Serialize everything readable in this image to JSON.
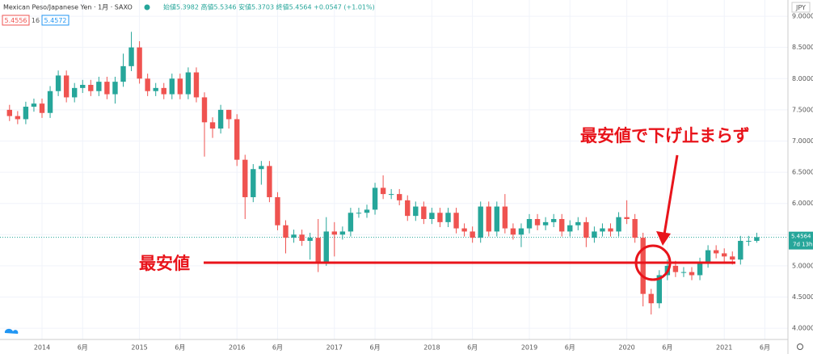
{
  "header": {
    "symbol": "Mexican Peso/Japanese Yen · 1月 · SAXO",
    "ohlc": "始値5.3982 高値5.5346 安値5.3703 終値5.4564 +0.0547 (+1.01%)",
    "box1": "5.4556",
    "box2": "16",
    "box3": "5.4572"
  },
  "chart_data": {
    "type": "candlestick",
    "currency": "JPY",
    "up_color": "#26a69a",
    "down_color": "#ef5350",
    "categories": [
      "2013-09",
      "2013-10",
      "2013-11",
      "2013-12",
      "2014-01",
      "2014-02",
      "2014-03",
      "2014-04",
      "2014-05",
      "2014-06",
      "2014-07",
      "2014-08",
      "2014-09",
      "2014-10",
      "2014-11",
      "2014-12",
      "2015-01",
      "2015-02",
      "2015-03",
      "2015-04",
      "2015-05",
      "2015-06",
      "2015-07",
      "2015-08",
      "2015-09",
      "2015-10",
      "2015-11",
      "2015-12",
      "2016-01",
      "2016-02",
      "2016-03",
      "2016-04",
      "2016-05",
      "2016-06",
      "2016-07",
      "2016-08",
      "2016-09",
      "2016-10",
      "2016-11",
      "2016-12",
      "2017-01",
      "2017-02",
      "2017-03",
      "2017-04",
      "2017-05",
      "2017-06",
      "2017-07",
      "2017-08",
      "2017-09",
      "2017-10",
      "2017-11",
      "2017-12",
      "2018-01",
      "2018-02",
      "2018-03",
      "2018-04",
      "2018-05",
      "2018-06",
      "2018-07",
      "2018-08",
      "2018-09",
      "2018-10",
      "2018-11",
      "2018-12",
      "2019-01",
      "2019-02",
      "2019-03",
      "2019-04",
      "2019-05",
      "2019-06",
      "2019-07",
      "2019-08",
      "2019-09",
      "2019-10",
      "2019-11",
      "2019-12",
      "2020-01",
      "2020-02",
      "2020-03",
      "2020-04",
      "2020-05",
      "2020-06",
      "2020-07",
      "2020-08",
      "2020-09",
      "2020-10",
      "2020-11",
      "2020-12",
      "2021-01",
      "2021-02",
      "2021-03",
      "2021-04",
      "2021-05"
    ],
    "open": [
      7.5,
      7.4,
      7.35,
      7.55,
      7.6,
      7.45,
      7.8,
      8.05,
      7.7,
      7.85,
      7.9,
      7.8,
      7.95,
      7.75,
      7.95,
      8.2,
      8.5,
      8.0,
      7.8,
      7.85,
      7.75,
      8.0,
      7.75,
      8.1,
      7.7,
      7.3,
      7.2,
      7.5,
      7.35,
      6.7,
      6.1,
      6.55,
      6.6,
      6.1,
      5.65,
      5.45,
      5.5,
      5.4,
      5.45,
      5.05,
      5.55,
      5.5,
      5.55,
      5.85,
      5.85,
      5.9,
      6.25,
      6.15,
      6.15,
      6.05,
      5.8,
      5.95,
      5.75,
      5.85,
      5.7,
      5.85,
      5.6,
      5.55,
      5.45,
      5.95,
      5.55,
      5.95,
      5.6,
      5.5,
      5.6,
      5.75,
      5.65,
      5.7,
      5.75,
      5.55,
      5.65,
      5.7,
      5.45,
      5.55,
      5.6,
      5.55,
      5.78,
      5.75,
      5.45,
      4.55,
      4.4,
      4.85,
      5.0,
      4.9,
      4.9,
      4.85,
      5.05,
      5.25,
      5.2,
      5.15,
      5.1,
      5.4,
      5.4
    ],
    "high": [
      7.58,
      7.48,
      7.63,
      7.68,
      7.68,
      7.88,
      8.13,
      8.13,
      7.93,
      7.98,
      7.98,
      8.03,
      8.03,
      8.03,
      8.4,
      8.75,
      8.6,
      8.08,
      7.93,
      7.93,
      8.08,
      8.08,
      8.18,
      8.18,
      7.78,
      7.38,
      7.58,
      7.5,
      7.43,
      6.78,
      6.63,
      6.68,
      6.68,
      6.18,
      5.73,
      5.58,
      5.58,
      5.53,
      5.75,
      5.78,
      5.7,
      5.63,
      5.93,
      5.93,
      5.98,
      6.33,
      6.45,
      6.23,
      6.23,
      6.13,
      6.03,
      6.03,
      5.93,
      5.93,
      5.93,
      5.93,
      5.68,
      5.63,
      6.03,
      6.03,
      6.03,
      6.15,
      5.68,
      5.68,
      5.83,
      5.83,
      5.78,
      5.83,
      5.83,
      5.73,
      5.78,
      5.78,
      5.63,
      5.68,
      5.68,
      5.86,
      6.05,
      5.83,
      5.53,
      4.63,
      4.93,
      5.1,
      5.08,
      4.98,
      4.98,
      5.13,
      5.33,
      5.33,
      5.28,
      5.23,
      5.48,
      5.48,
      5.53
    ],
    "low": [
      7.32,
      7.27,
      7.27,
      7.47,
      7.37,
      7.37,
      7.72,
      7.62,
      7.62,
      7.77,
      7.72,
      7.72,
      7.67,
      7.6,
      7.87,
      8.12,
      7.92,
      7.72,
      7.72,
      7.67,
      7.67,
      7.67,
      7.67,
      7.62,
      6.75,
      7.05,
      7.12,
      7.2,
      6.6,
      5.75,
      6.02,
      6.3,
      6.02,
      5.57,
      5.2,
      5.37,
      5.32,
      5.1,
      4.9,
      5.0,
      5.15,
      5.42,
      5.47,
      5.77,
      5.77,
      5.82,
      6.07,
      6.07,
      5.97,
      5.72,
      5.72,
      5.67,
      5.67,
      5.62,
      5.62,
      5.52,
      5.47,
      5.37,
      5.37,
      5.47,
      5.47,
      5.52,
      5.42,
      5.3,
      5.52,
      5.57,
      5.57,
      5.62,
      5.47,
      5.47,
      5.57,
      5.3,
      5.37,
      5.47,
      5.47,
      5.47,
      5.67,
      5.37,
      4.35,
      4.22,
      4.32,
      4.77,
      4.82,
      4.82,
      4.77,
      4.77,
      4.97,
      5.12,
      5.07,
      5.02,
      5.02,
      5.32,
      5.37
    ],
    "close": [
      7.4,
      7.35,
      7.55,
      7.6,
      7.45,
      7.8,
      8.05,
      7.7,
      7.85,
      7.9,
      7.8,
      7.95,
      7.75,
      7.95,
      8.2,
      8.5,
      8.0,
      7.8,
      7.85,
      7.75,
      8.0,
      7.75,
      8.1,
      7.7,
      7.3,
      7.2,
      7.5,
      7.35,
      6.7,
      6.1,
      6.55,
      6.6,
      6.1,
      5.65,
      5.45,
      5.5,
      5.4,
      5.45,
      5.05,
      5.55,
      5.5,
      5.55,
      5.85,
      5.85,
      5.9,
      6.25,
      6.15,
      6.15,
      6.05,
      5.8,
      5.95,
      5.75,
      5.85,
      5.7,
      5.85,
      5.6,
      5.55,
      5.45,
      5.95,
      5.55,
      5.95,
      5.6,
      5.5,
      5.6,
      5.75,
      5.65,
      5.7,
      5.75,
      5.55,
      5.65,
      5.7,
      5.45,
      5.55,
      5.6,
      5.55,
      5.78,
      5.75,
      5.45,
      4.55,
      4.4,
      4.85,
      5.0,
      4.9,
      4.9,
      4.85,
      5.05,
      5.25,
      5.2,
      5.15,
      5.1,
      5.4,
      5.4,
      5.46
    ],
    "ylim": [
      3.82,
      9.26
    ],
    "yticks": [
      {
        "value": 4,
        "label": "4.0000"
      },
      {
        "value": 4.5,
        "label": "4.5000"
      },
      {
        "value": 5,
        "label": "5.0000"
      },
      {
        "value": 5.5,
        "label": "5.5000"
      },
      {
        "value": 6,
        "label": "6.0000"
      },
      {
        "value": 6.5,
        "label": "6.5000"
      },
      {
        "value": 7,
        "label": "7.0000"
      },
      {
        "value": 7.5,
        "label": "7.5000"
      },
      {
        "value": 8,
        "label": "8.0000"
      },
      {
        "value": 8.5,
        "label": "8.5000"
      },
      {
        "value": 9,
        "label": "9.0000"
      }
    ],
    "xticks": [
      {
        "value": "2014-01",
        "label": "2014"
      },
      {
        "value": "2014-06",
        "label": "6月"
      },
      {
        "value": "2015-01",
        "label": "2015"
      },
      {
        "value": "2015-06",
        "label": "6月"
      },
      {
        "value": "2016-01",
        "label": "2016"
      },
      {
        "value": "2016-06",
        "label": "6月"
      },
      {
        "value": "2017-01",
        "label": "2017"
      },
      {
        "value": "2017-06",
        "label": "6月"
      },
      {
        "value": "2018-01",
        "label": "2018"
      },
      {
        "value": "2018-06",
        "label": "6月"
      },
      {
        "value": "2019-01",
        "label": "2019"
      },
      {
        "value": "2019-06",
        "label": "6月"
      },
      {
        "value": "2020-01",
        "label": "2020"
      },
      {
        "value": "2020-06",
        "label": "6月"
      },
      {
        "value": "2021-01",
        "label": "2021"
      },
      {
        "value": "2021-06",
        "label": "6月"
      }
    ],
    "grid": true,
    "last_price": {
      "value": 5.4564,
      "label": "5.4564",
      "countdown": "7d 13h"
    },
    "annotations": {
      "low_level": 5.05,
      "low_label": "最安値",
      "callout": "最安値で下げ止まらず"
    }
  }
}
